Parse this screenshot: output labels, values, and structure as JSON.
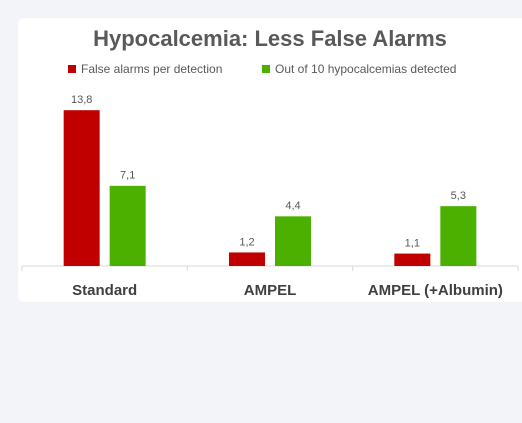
{
  "chart_data": {
    "type": "bar",
    "title": "Hypocalcemia: Less False Alarms",
    "categories": [
      "Standard",
      "AMPEL",
      "AMPEL (+Albumin)"
    ],
    "series": [
      {
        "name": "False alarms per detection",
        "color": "#c00000",
        "values": [
          13.8,
          1.2,
          1.1
        ],
        "value_labels": [
          "13,8",
          "1,2",
          "1,1"
        ]
      },
      {
        "name": "Out of 10 hypocalcemias detected",
        "color": "#4cb000",
        "values": [
          7.1,
          4.4,
          5.3
        ],
        "value_labels": [
          "7,1",
          "4,4",
          "5,3"
        ]
      }
    ],
    "ylim": [
      0,
      15.5
    ]
  }
}
